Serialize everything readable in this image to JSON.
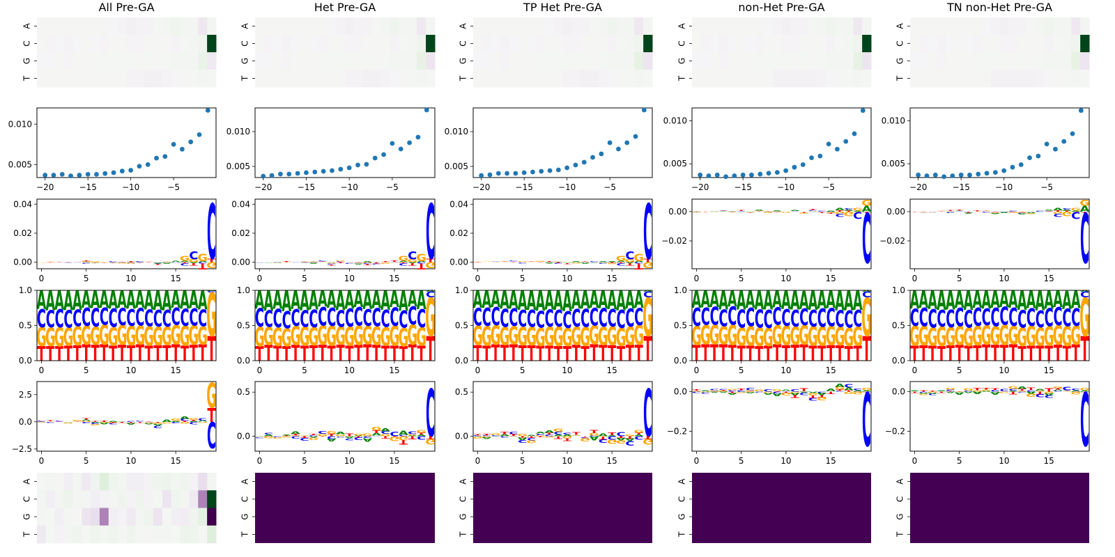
{
  "figure": {
    "columns": [
      {
        "title": "All Pre-GA"
      },
      {
        "title": "Het Pre-GA"
      },
      {
        "title": "TP Het Pre-GA"
      },
      {
        "title": "non-Het Pre-GA"
      },
      {
        "title": "TN non-Het Pre-GA"
      }
    ]
  },
  "colors": {
    "A": "#008000",
    "C": "#0000ff",
    "G": "#ffa500",
    "T": "#ff0000",
    "scatter": "#1f77b4",
    "viridis_low": "#440154"
  },
  "chart_data": [
    {
      "type": "heatmap",
      "row": 1,
      "y_tick_labels": [
        "A",
        "C",
        "G",
        "T"
      ],
      "colormap": "PRGn",
      "columns": [
        "All Pre-GA",
        "Het Pre-GA",
        "TP Het Pre-GA",
        "non-Het Pre-GA",
        "TN non-Het Pre-GA"
      ],
      "note_values": "values per column are relative (−1..1) for positions 0..19",
      "values": [
        [
          [
            0,
            0,
            0,
            0,
            0,
            0,
            0,
            0,
            -0.02,
            -0.05,
            -0.08,
            -0.05,
            -0.05,
            0.02,
            0.05,
            0.1,
            0.05,
            0.05,
            -0.3,
            0.05
          ],
          [
            0,
            -0.03,
            -0.02,
            -0.05,
            -0.02,
            0,
            -0.02,
            -0.03,
            0,
            0,
            -0.03,
            -0.03,
            0,
            0,
            0,
            -0.05,
            0.02,
            0.05,
            0.1,
            1.0
          ],
          [
            -0.02,
            -0.02,
            0,
            -0.03,
            0,
            0,
            0,
            0.03,
            0.03,
            0.03,
            0.02,
            0,
            0.02,
            0,
            0.03,
            0.05,
            0.05,
            0.05,
            0.2,
            -0.2
          ],
          [
            0,
            0,
            0,
            0,
            0,
            0,
            0,
            0,
            0,
            0,
            -0.05,
            -0.05,
            -0.08,
            -0.08,
            -0.05,
            -0.02,
            0,
            0.02,
            0.05,
            0.02
          ]
        ]
      ]
    },
    {
      "type": "scatter",
      "row": 2,
      "x_tick_labels": [
        "-20",
        "-15",
        "-10",
        "-5"
      ],
      "y_tick_labels_by_column": [
        [
          "0.005",
          "0.010"
        ],
        [
          "0.005",
          "0.010"
        ],
        [
          "0.005",
          "0.010"
        ],
        [
          "0.005",
          "0.010"
        ],
        [
          "0.005",
          "0.010"
        ]
      ],
      "series": [
        {
          "x": [
            -20,
            -19,
            -18,
            -17,
            -16,
            -15,
            -14,
            -13,
            -12,
            -11,
            -10,
            -9,
            -8,
            -7,
            -6,
            -5,
            -4,
            -3,
            -2,
            -1
          ],
          "y": [
            0.0037,
            0.0037,
            0.0038,
            0.0036,
            0.0037,
            0.0038,
            0.0038,
            0.0039,
            0.004,
            0.0042,
            0.0043,
            0.0048,
            0.005,
            0.0058,
            0.006,
            0.0075,
            0.0069,
            0.0078,
            0.0087,
            0.0117
          ]
        },
        {
          "x": [
            -20,
            -19,
            -18,
            -17,
            -16,
            -15,
            -14,
            -13,
            -12,
            -11,
            -10,
            -9,
            -8,
            -7,
            -6,
            -5,
            -4,
            -3,
            -2,
            -1
          ],
          "y": [
            0.0036,
            0.0037,
            0.0039,
            0.0039,
            0.004,
            0.0041,
            0.0042,
            0.0043,
            0.0044,
            0.0046,
            0.0048,
            0.0052,
            0.0053,
            0.0062,
            0.0067,
            0.0083,
            0.0075,
            0.0084,
            0.0092,
            0.0131
          ]
        },
        {
          "x": [
            -20,
            -19,
            -18,
            -17,
            -16,
            -15,
            -14,
            -13,
            -12,
            -11,
            -10,
            -9,
            -8,
            -7,
            -6,
            -5,
            -4,
            -3,
            -2,
            -1
          ],
          "y": [
            0.0037,
            0.0038,
            0.004,
            0.004,
            0.004,
            0.0041,
            0.0042,
            0.0043,
            0.0044,
            0.0045,
            0.0048,
            0.0052,
            0.0056,
            0.0063,
            0.0068,
            0.0084,
            0.0075,
            0.0084,
            0.0093,
            0.0131
          ]
        },
        {
          "x": [
            -20,
            -19,
            -18,
            -17,
            -16,
            -15,
            -14,
            -13,
            -12,
            -11,
            -10,
            -9,
            -8,
            -7,
            -6,
            -5,
            -4,
            -3,
            -2,
            -1
          ],
          "y": [
            0.0037,
            0.0036,
            0.0037,
            0.0035,
            0.0036,
            0.0037,
            0.0037,
            0.0038,
            0.0039,
            0.004,
            0.0042,
            0.0046,
            0.0049,
            0.0057,
            0.0059,
            0.0073,
            0.0067,
            0.0076,
            0.0085,
            0.0112
          ]
        },
        {
          "x": [
            -20,
            -19,
            -18,
            -17,
            -16,
            -15,
            -14,
            -13,
            -12,
            -11,
            -10,
            -9,
            -8,
            -7,
            -6,
            -5,
            -4,
            -3,
            -2,
            -1
          ],
          "y": [
            0.0037,
            0.0036,
            0.0037,
            0.0035,
            0.0036,
            0.0037,
            0.0037,
            0.0038,
            0.0039,
            0.004,
            0.0042,
            0.0046,
            0.0049,
            0.0057,
            0.0059,
            0.0073,
            0.0067,
            0.0076,
            0.0085,
            0.0112
          ]
        }
      ]
    },
    {
      "type": "logo",
      "row": 3,
      "x_tick_labels": [
        "0",
        "5",
        "10",
        "15"
      ],
      "y_tick_labels_by_column": [
        [
          "0.00",
          "0.02",
          "0.04"
        ],
        [
          "0.00",
          "0.02",
          "0.04"
        ],
        [
          "0.00",
          "0.02",
          "0.04"
        ],
        [
          "-0.02",
          "0.00"
        ],
        [
          "-0.02",
          "0.00"
        ]
      ],
      "summary": "positive letters at last positions: C then G dominant (cols 1-3); negative C dominant (cols 4-5)"
    },
    {
      "type": "logo",
      "row": 4,
      "x_tick_labels": [
        "0",
        "5",
        "10",
        "15"
      ],
      "y_tick_labels": [
        "0.0",
        "0.5",
        "1.0"
      ],
      "summary": "stacked frequency logo; T bottom (~0.22), G (~0.27), C (~0.25), A top (~0.26) at positions 0..18, position 19 dominated by G"
    },
    {
      "type": "logo",
      "row": 5,
      "x_tick_labels": [
        "0",
        "5",
        "10",
        "15"
      ],
      "y_tick_labels_by_column": [
        [
          "-2.5",
          "0.0",
          "2.5"
        ],
        [
          "0.0",
          "0.5"
        ],
        [
          "0.0",
          "0.5"
        ],
        [
          "-0.2",
          "0.0"
        ],
        [
          "-0.2",
          "0.0"
        ]
      ]
    },
    {
      "type": "heatmap",
      "row": 6,
      "y_tick_labels": [
        "A",
        "C",
        "G",
        "T"
      ],
      "values_column1": [
        [
          0.02,
          0.05,
          0,
          -0.1,
          0.05,
          -0.2,
          0.1,
          0.4,
          0.1,
          0.05,
          -0.1,
          -0.1,
          -0.05,
          0.1,
          0.15,
          0.05,
          0.1,
          -0.05,
          -0.4,
          0.05
        ],
        [
          0.05,
          -0.1,
          0.05,
          0.15,
          0.05,
          0.05,
          -0.1,
          -0.05,
          0.05,
          0.1,
          -0.05,
          0.1,
          -0.05,
          0.02,
          -0.3,
          0.1,
          0.05,
          -0.2,
          -0.6,
          1.0
        ],
        [
          0.05,
          0.02,
          -0.1,
          0.05,
          0,
          -0.3,
          -0.4,
          -0.6,
          -0.1,
          -0.05,
          -0.2,
          0.05,
          0.1,
          -0.3,
          0.02,
          -0.1,
          -0.15,
          0.1,
          0.3,
          -1.0
        ],
        [
          -0.2,
          0.02,
          -0.05,
          0.05,
          0.1,
          0.02,
          0.1,
          0.05,
          0.1,
          0.02,
          0.1,
          0.02,
          0,
          0.05,
          0.05,
          0.02,
          0.15,
          0.1,
          0.02,
          0.4
        ]
      ],
      "other_columns": "uniform value (viridis minimum)"
    }
  ]
}
